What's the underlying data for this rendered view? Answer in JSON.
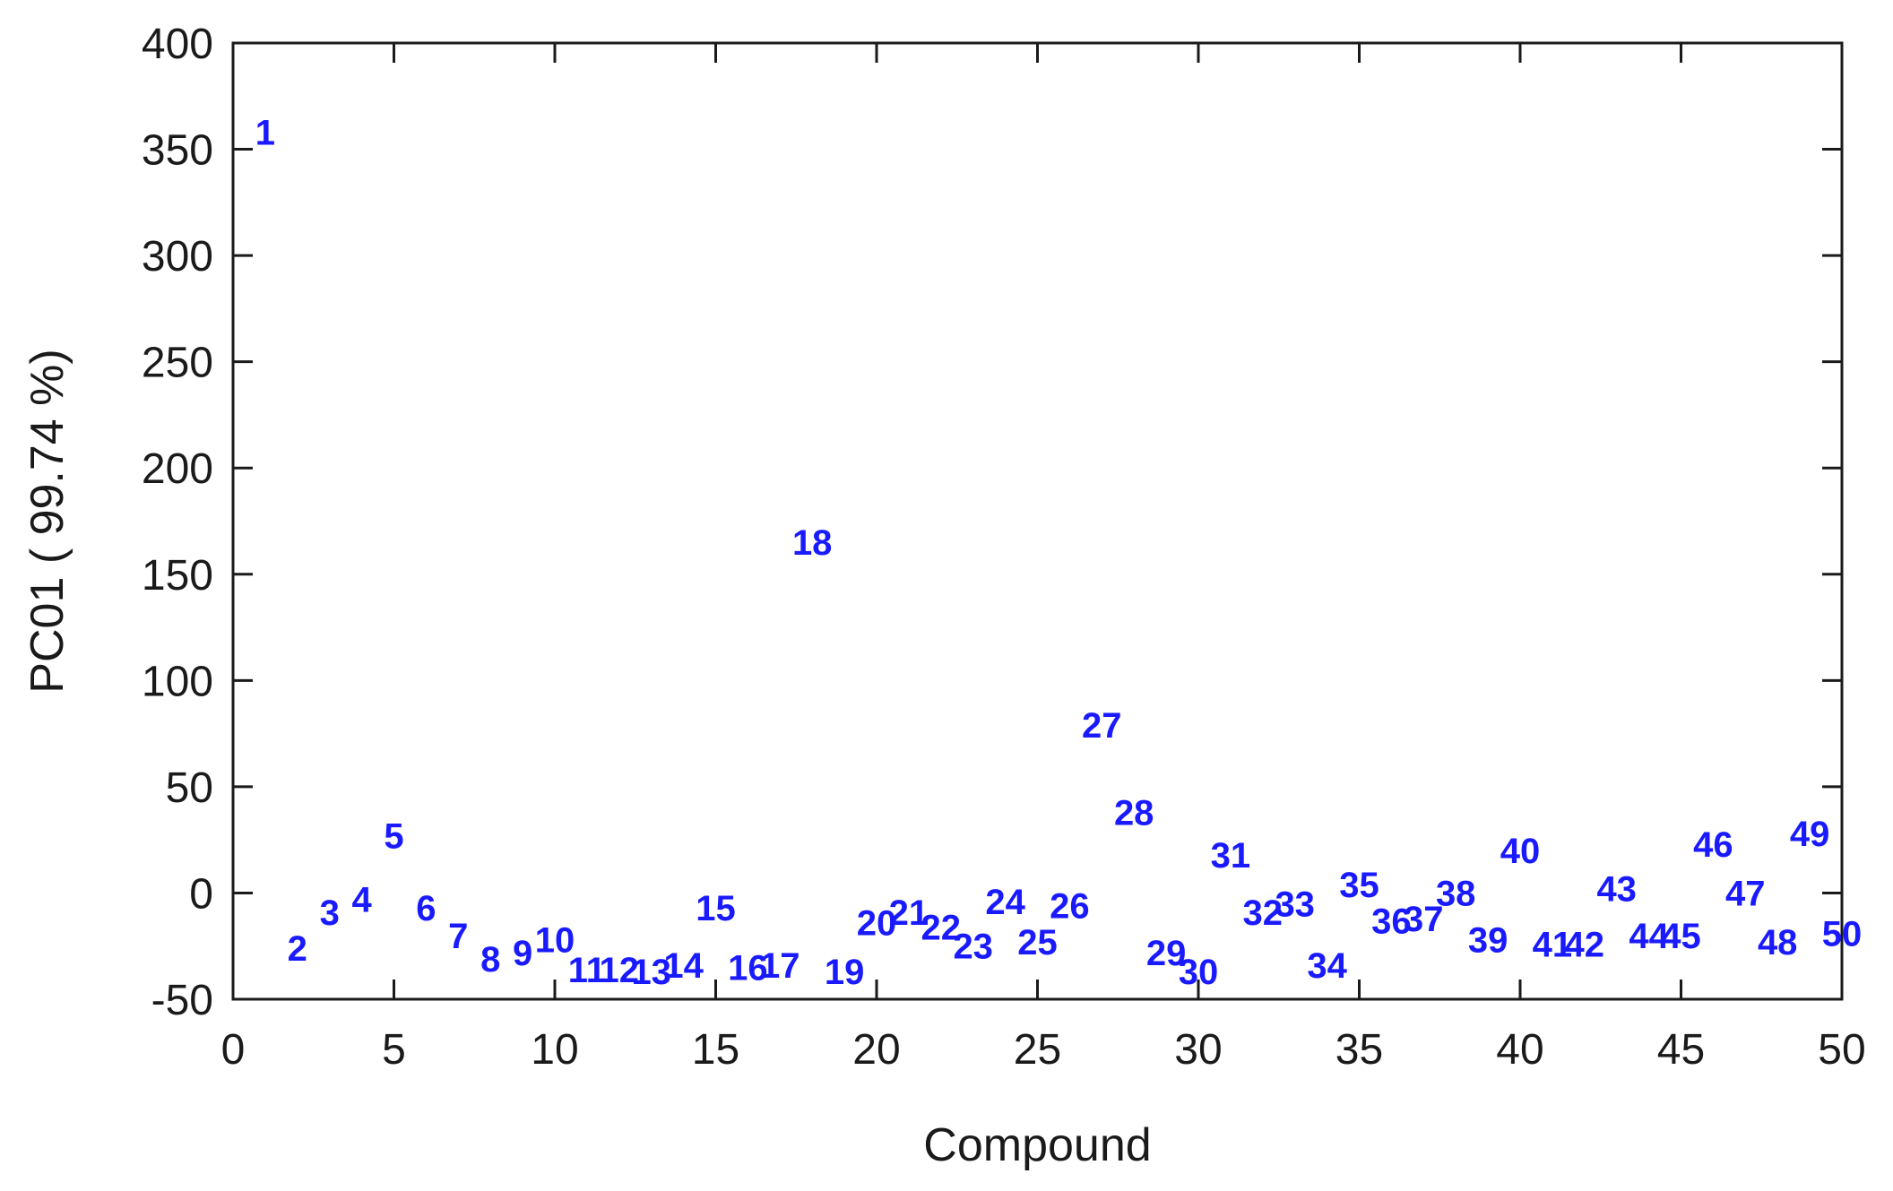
{
  "chart_data": {
    "type": "scatter",
    "marker": "text-label",
    "point_color": "#1a1aff",
    "xlabel": "Compound",
    "ylabel": "PC01 ( 99.74 %)",
    "xlim": [
      0,
      50
    ],
    "ylim": [
      -50,
      400
    ],
    "xticks": [
      0,
      5,
      10,
      15,
      20,
      25,
      30,
      35,
      40,
      45,
      50
    ],
    "yticks": [
      -50,
      0,
      50,
      100,
      150,
      200,
      250,
      300,
      350,
      400
    ],
    "grid": false,
    "points": [
      {
        "label": "1",
        "x": 1,
        "y": 358
      },
      {
        "label": "2",
        "x": 2,
        "y": -26
      },
      {
        "label": "3",
        "x": 3,
        "y": -9
      },
      {
        "label": "4",
        "x": 4,
        "y": -3
      },
      {
        "label": "5",
        "x": 5,
        "y": 27
      },
      {
        "label": "6",
        "x": 6,
        "y": -7
      },
      {
        "label": "7",
        "x": 7,
        "y": -20
      },
      {
        "label": "8",
        "x": 8,
        "y": -31
      },
      {
        "label": "9",
        "x": 9,
        "y": -28
      },
      {
        "label": "10",
        "x": 10,
        "y": -22
      },
      {
        "label": "11",
        "x": 11,
        "y": -36
      },
      {
        "label": "12",
        "x": 12,
        "y": -36
      },
      {
        "label": "13",
        "x": 13,
        "y": -37
      },
      {
        "label": "14",
        "x": 14,
        "y": -34
      },
      {
        "label": "15",
        "x": 15,
        "y": -7
      },
      {
        "label": "16",
        "x": 16,
        "y": -35
      },
      {
        "label": "17",
        "x": 17,
        "y": -34
      },
      {
        "label": "18",
        "x": 18,
        "y": 165
      },
      {
        "label": "19",
        "x": 19,
        "y": -37
      },
      {
        "label": "20",
        "x": 20,
        "y": -14
      },
      {
        "label": "21",
        "x": 21,
        "y": -9
      },
      {
        "label": "22",
        "x": 22,
        "y": -16
      },
      {
        "label": "23",
        "x": 23,
        "y": -25
      },
      {
        "label": "24",
        "x": 24,
        "y": -4
      },
      {
        "label": "25",
        "x": 25,
        "y": -23
      },
      {
        "label": "26",
        "x": 26,
        "y": -6
      },
      {
        "label": "27",
        "x": 27,
        "y": 79
      },
      {
        "label": "28",
        "x": 28,
        "y": 38
      },
      {
        "label": "29",
        "x": 29,
        "y": -28
      },
      {
        "label": "30",
        "x": 30,
        "y": -37
      },
      {
        "label": "31",
        "x": 31,
        "y": 18
      },
      {
        "label": "32",
        "x": 32,
        "y": -9
      },
      {
        "label": "33",
        "x": 33,
        "y": -5
      },
      {
        "label": "34",
        "x": 34,
        "y": -34
      },
      {
        "label": "35",
        "x": 35,
        "y": 4
      },
      {
        "label": "36",
        "x": 36,
        "y": -13
      },
      {
        "label": "37",
        "x": 37,
        "y": -12
      },
      {
        "label": "38",
        "x": 38,
        "y": 0
      },
      {
        "label": "39",
        "x": 39,
        "y": -22
      },
      {
        "label": "40",
        "x": 40,
        "y": 20
      },
      {
        "label": "41",
        "x": 41,
        "y": -24
      },
      {
        "label": "42",
        "x": 42,
        "y": -24
      },
      {
        "label": "43",
        "x": 43,
        "y": 2
      },
      {
        "label": "44",
        "x": 44,
        "y": -20
      },
      {
        "label": "45",
        "x": 45,
        "y": -20
      },
      {
        "label": "46",
        "x": 46,
        "y": 23
      },
      {
        "label": "47",
        "x": 47,
        "y": 0
      },
      {
        "label": "48",
        "x": 48,
        "y": -23
      },
      {
        "label": "49",
        "x": 49,
        "y": 28
      },
      {
        "label": "50",
        "x": 50,
        "y": -19
      }
    ]
  }
}
